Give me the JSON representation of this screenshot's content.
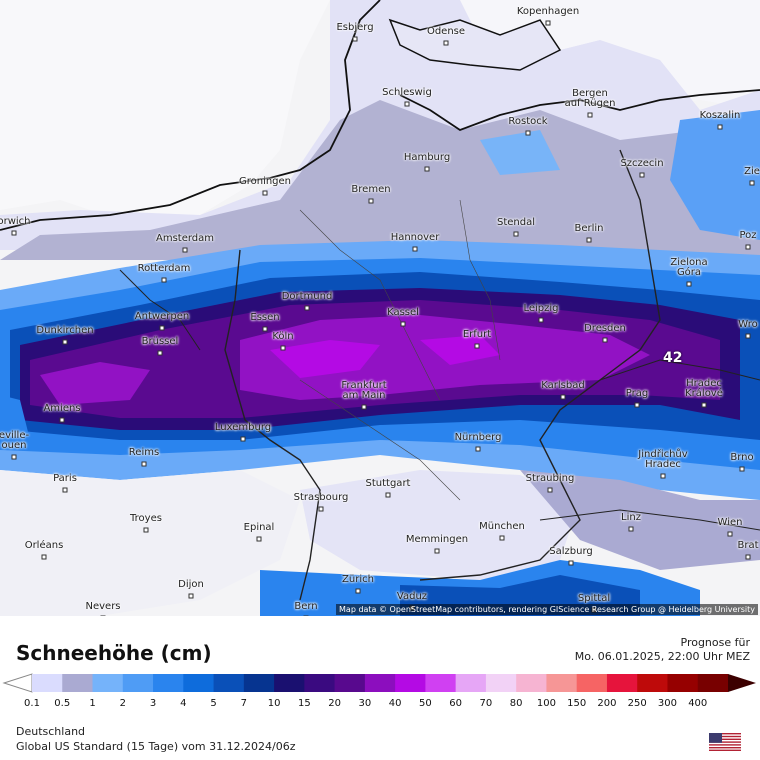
{
  "map": {
    "attribution": "Map data © OpenStreetMap contributors, rendering GIScience Research Group @ Heidelberg University",
    "max_value": "42",
    "cities": [
      {
        "name": "Esbjerg"
      },
      {
        "name": "Odense"
      },
      {
        "name": "Kopenhagen"
      },
      {
        "name": "Schleswig"
      },
      {
        "name": "Bergen\nauf Rügen"
      },
      {
        "name": "Koszalin"
      },
      {
        "name": "Rostock"
      },
      {
        "name": "Hamburg"
      },
      {
        "name": "Szczecin"
      },
      {
        "name": "Groningen"
      },
      {
        "name": "Bremen"
      },
      {
        "name": "Zie"
      },
      {
        "name": "orwich"
      },
      {
        "name": "Amsterdam"
      },
      {
        "name": "Hannover"
      },
      {
        "name": "Stendal"
      },
      {
        "name": "Berlin"
      },
      {
        "name": "Poz"
      },
      {
        "name": "Rotterdam"
      },
      {
        "name": "Zielona\nGóra"
      },
      {
        "name": "Dortmund"
      },
      {
        "name": "Dunkirchen"
      },
      {
        "name": "Antwerpen"
      },
      {
        "name": "Essen"
      },
      {
        "name": "Kassel"
      },
      {
        "name": "Leipzig"
      },
      {
        "name": "Wro"
      },
      {
        "name": "Dresden"
      },
      {
        "name": "Köln"
      },
      {
        "name": "Brüssel"
      },
      {
        "name": "Erfurt"
      },
      {
        "name": "Frankfurt\nam Main"
      },
      {
        "name": "Karlsbad"
      },
      {
        "name": "Hradec\nKrálové"
      },
      {
        "name": "Amiens"
      },
      {
        "name": "Prag"
      },
      {
        "name": "Luxemburg"
      },
      {
        "name": "eville-\nouen"
      },
      {
        "name": "Nürnberg"
      },
      {
        "name": "Jindřichův\nHradec"
      },
      {
        "name": "Reims"
      },
      {
        "name": "Brno"
      },
      {
        "name": "Paris"
      },
      {
        "name": "Straubing"
      },
      {
        "name": "Stuttgart"
      },
      {
        "name": "Strasbourg"
      },
      {
        "name": "Troyes"
      },
      {
        "name": "Linz"
      },
      {
        "name": "Wien"
      },
      {
        "name": "Epinal"
      },
      {
        "name": "München"
      },
      {
        "name": "Memmingen"
      },
      {
        "name": "Orléans"
      },
      {
        "name": "Salzburg"
      },
      {
        "name": "Brat"
      },
      {
        "name": "Dijon"
      },
      {
        "name": "Zürich"
      },
      {
        "name": "Vaduz"
      },
      {
        "name": "Nevers"
      },
      {
        "name": "Bern"
      },
      {
        "name": "Spittal"
      }
    ]
  },
  "legend": {
    "title": "Schneehöhe (cm)",
    "forecast_label": "Prognose für",
    "forecast_date": "Mo. 06.01.2025, 22:00 Uhr MEZ",
    "ticks": [
      "0.1",
      "0.5",
      "1",
      "2",
      "3",
      "4",
      "5",
      "7",
      "10",
      "15",
      "20",
      "30",
      "40",
      "50",
      "60",
      "70",
      "80",
      "100",
      "150",
      "200",
      "250",
      "300",
      "400"
    ],
    "colors": [
      "#dadcfe",
      "#aaaad2",
      "#75b3fa",
      "#4f9cf5",
      "#2a84ee",
      "#0e6cdc",
      "#0a50b8",
      "#063490",
      "#1a1070",
      "#3a0a80",
      "#58098e",
      "#8c0ebe",
      "#b40ae4",
      "#d040f2",
      "#e6a6f6",
      "#f2d2f6",
      "#f6b4d2",
      "#f69696",
      "#f66464",
      "#e6143c",
      "#be0a0a",
      "#960000",
      "#780000"
    ],
    "region": "Deutschland",
    "model": "Global US Standard (15 Tage) vom 31.12.2024/06z"
  }
}
